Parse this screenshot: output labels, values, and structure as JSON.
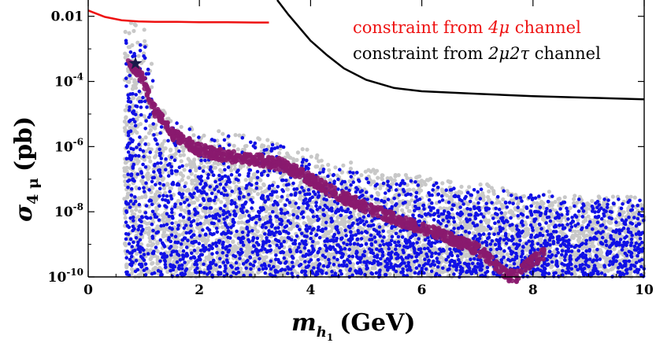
{
  "chart_data": {
    "type": "scatter",
    "title": "",
    "xlabel": "m_h1 (GeV)",
    "ylabel": "σ_4μ (pb)",
    "xaxis": {
      "symbol": "m",
      "subscript": "h",
      "subsubscript": "1",
      "unit": "(GeV)"
    },
    "yaxis": {
      "symbol": "σ",
      "subscript": "4 μ",
      "unit": "(pb)",
      "scale": "log10"
    },
    "xlim": [
      0,
      10
    ],
    "ylim_log10": [
      -10,
      -1.5
    ],
    "x_ticks": [
      0,
      2,
      4,
      6,
      8,
      10
    ],
    "x_tick_labels": [
      "0",
      "2",
      "4",
      "6",
      "8",
      "10"
    ],
    "y_ticks_log10": [
      -2,
      -4,
      -6,
      -8,
      -10
    ],
    "y_tick_labels": [
      {
        "base": "0.01",
        "exp": ""
      },
      {
        "base": "10",
        "exp": "-4"
      },
      {
        "base": "10",
        "exp": "-6"
      },
      {
        "base": "10",
        "exp": "-8"
      },
      {
        "base": "10",
        "exp": "-10"
      }
    ],
    "colors": {
      "grey_points": "#c8c8c8",
      "blue_points": "#1010e6",
      "purple_band": "#8a1a6e",
      "red_curve": "#ee1111",
      "black_curve": "#000000",
      "star": "#1a1a4a"
    },
    "legend": [
      {
        "label_prefix": "constraint from ",
        "label_math": "4μ",
        "label_suffix": " channel",
        "color": "#ee1111"
      },
      {
        "label_prefix": "constraint from ",
        "label_math": "2μ2τ",
        "label_suffix": " channel",
        "color": "#000000"
      }
    ],
    "series": [
      {
        "name": "constraint from 4μ channel",
        "kind": "line",
        "x": [
          0,
          0.3,
          0.6,
          0.9,
          1.2,
          1.6,
          2.0,
          2.5,
          3.0,
          3.25
        ],
        "log10_y": [
          -1.82,
          -2.02,
          -2.12,
          -2.16,
          -2.17,
          -2.17,
          -2.18,
          -2.18,
          -2.19,
          -2.19
        ]
      },
      {
        "name": "constraint from 2μ2τ channel",
        "kind": "line",
        "x": [
          3.4,
          3.6,
          3.8,
          4.0,
          4.3,
          4.6,
          5.0,
          5.5,
          6.0,
          7.0,
          8.0,
          9.0,
          10.0
        ],
        "log10_y": [
          -1.5,
          -1.95,
          -2.35,
          -2.75,
          -3.2,
          -3.6,
          -3.95,
          -4.2,
          -4.3,
          -4.38,
          -4.45,
          -4.5,
          -4.55
        ]
      },
      {
        "name": "benchmark band",
        "kind": "band",
        "x": [
          0.7,
          0.85,
          1.0,
          1.2,
          1.5,
          2.0,
          2.5,
          3.0,
          3.5,
          4.0,
          4.5,
          5.0,
          5.5,
          6.0,
          6.5,
          7.0,
          7.3,
          7.5,
          7.7,
          7.9,
          8.2
        ],
        "log10_y": [
          -3.4,
          -3.6,
          -4.0,
          -4.9,
          -5.6,
          -6.1,
          -6.3,
          -6.4,
          -6.55,
          -7.0,
          -7.5,
          -7.85,
          -8.2,
          -8.5,
          -8.8,
          -9.15,
          -9.55,
          -9.95,
          -10.0,
          -9.6,
          -9.3
        ]
      },
      {
        "name": "scan points (grey)",
        "kind": "scatter-cloud",
        "x_range": [
          0.65,
          10
        ],
        "upper_envelope_log10": {
          "x": [
            0.65,
            1.0,
            1.3,
            2,
            3,
            4,
            5,
            6,
            7,
            8,
            9,
            10
          ],
          "y": [
            -2.0,
            -2.2,
            -4.8,
            -5.4,
            -5.6,
            -6.05,
            -6.6,
            -6.9,
            -7.1,
            -7.35,
            -7.45,
            -7.5
          ]
        },
        "lower_bound_log10": -10
      },
      {
        "name": "scan points (blue)",
        "kind": "scatter-cloud",
        "x_range": [
          0.68,
          10
        ],
        "upper_envelope_log10": {
          "x": [
            0.68,
            1.0,
            1.3,
            2,
            3,
            4,
            5,
            6,
            7,
            8,
            9,
            10
          ],
          "y": [
            -2.2,
            -2.5,
            -4.9,
            -5.55,
            -5.7,
            -6.25,
            -6.75,
            -7.05,
            -7.25,
            -7.45,
            -7.55,
            -7.6
          ]
        },
        "lower_bound_log10": -10
      }
    ],
    "annotations": [
      {
        "type": "star-marker",
        "x": 0.85,
        "log10_y": -3.45
      }
    ]
  }
}
